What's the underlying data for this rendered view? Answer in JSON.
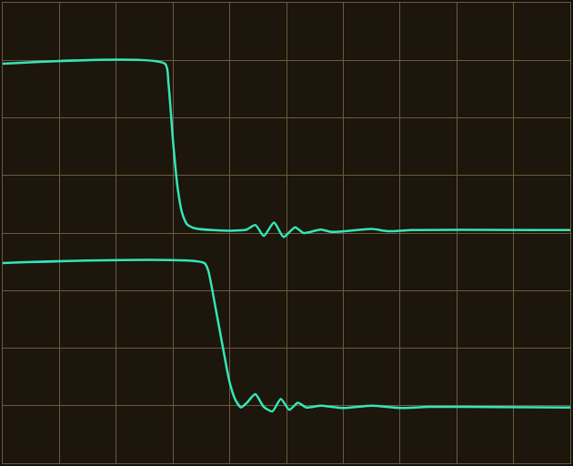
{
  "chart_data": {
    "type": "line",
    "xlim": [
      0,
      10
    ],
    "ylim": [
      0,
      8
    ],
    "xticks": [
      0,
      1,
      2,
      3,
      4,
      5,
      6,
      7,
      8,
      9,
      10
    ],
    "yticks": [
      0,
      1,
      2,
      3,
      4,
      5,
      6,
      7,
      8
    ],
    "grid": true,
    "tick_labels": false,
    "series": [
      {
        "color": "#33e6b8",
        "x": [
          0,
          2.86,
          2.92,
          3.0,
          3.08,
          3.16,
          3.25,
          3.4,
          3.7,
          4.0,
          4.3,
          4.45,
          4.6,
          4.78,
          4.95,
          5.15,
          5.3,
          5.6,
          5.8,
          6.5,
          6.8,
          7.2,
          10
        ],
        "values": [
          6.94,
          6.94,
          6.6,
          5.6,
          4.8,
          4.35,
          4.15,
          4.08,
          4.05,
          4.04,
          4.06,
          4.14,
          3.95,
          4.18,
          3.93,
          4.1,
          4.0,
          4.06,
          4.02,
          4.07,
          4.03,
          4.05,
          4.05
        ]
      },
      {
        "color": "#33e6b8",
        "x": [
          0,
          3.55,
          3.62,
          3.75,
          3.9,
          4.0,
          4.1,
          4.2,
          4.3,
          4.45,
          4.6,
          4.75,
          4.9,
          5.05,
          5.2,
          5.35,
          5.6,
          6.0,
          6.5,
          7.0,
          7.5,
          10
        ],
        "values": [
          3.48,
          3.48,
          3.35,
          2.7,
          1.9,
          1.4,
          1.1,
          0.97,
          1.05,
          1.2,
          0.98,
          0.9,
          1.12,
          0.93,
          1.05,
          0.97,
          1.0,
          0.96,
          1.0,
          0.96,
          0.98,
          0.97
        ]
      }
    ]
  }
}
